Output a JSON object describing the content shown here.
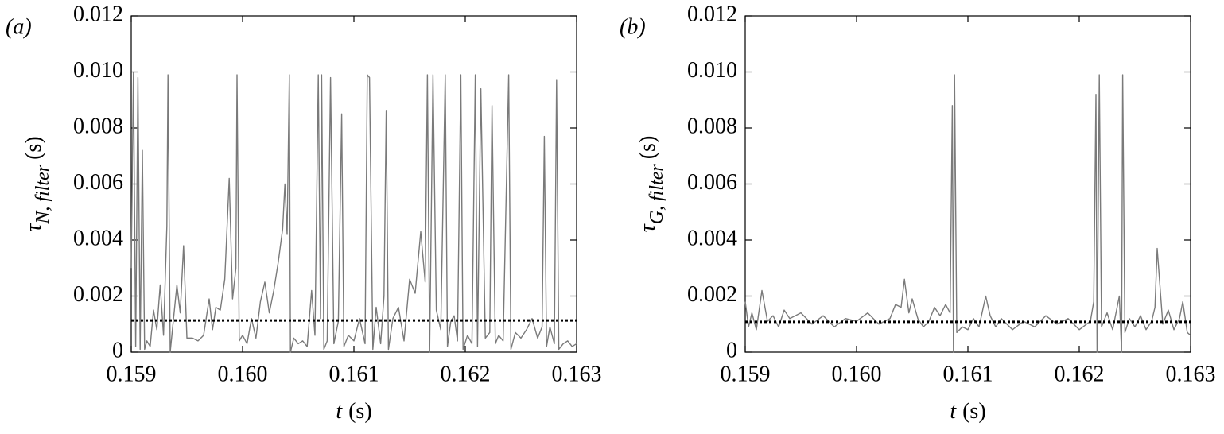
{
  "chart_data": [
    {
      "type": "line",
      "panel_label": "(a)",
      "xlabel": {
        "symbol": "t",
        "unit": "(s)"
      },
      "ylabel": {
        "symbol": "τ",
        "subscript": "N, filter",
        "unit": "(s)"
      },
      "xlim": [
        0.159,
        0.163
      ],
      "ylim": [
        0,
        0.012
      ],
      "xticks": [
        0.159,
        {
          "value": 0.16,
          "label": "0.160"
        },
        0.161,
        0.162,
        0.163
      ],
      "yticks": [
        0,
        {
          "value": 0.002,
          "label": "0.002"
        },
        {
          "value": 0.004,
          "label": "0.004"
        },
        {
          "value": 0.006,
          "label": "0.006"
        },
        {
          "value": 0.008,
          "label": "0.008"
        },
        {
          "value": 0.01,
          "label": "0.010"
        },
        {
          "value": 0.012,
          "label": "0.012"
        }
      ],
      "threshold": 0.00113,
      "threshold_color": "#000000",
      "x": [
        0.159,
        0.15902,
        0.15904,
        0.15906,
        0.15908,
        0.1591,
        0.15912,
        0.15914,
        0.15917,
        0.1592,
        0.15923,
        0.15926,
        0.15929,
        0.15932,
        0.15933,
        0.15935,
        0.15938,
        0.15941,
        0.15944,
        0.15947,
        0.1595,
        0.15955,
        0.1596,
        0.15965,
        0.1597,
        0.15973,
        0.15976,
        0.1598,
        0.15984,
        0.15988,
        0.15991,
        0.15994,
        0.15995,
        0.15997,
        0.16,
        0.16004,
        0.16008,
        0.16012,
        0.16016,
        0.1602,
        0.16024,
        0.16028,
        0.16032,
        0.16036,
        0.16038,
        0.1604,
        0.16042,
        0.16043,
        0.16046,
        0.1605,
        0.16054,
        0.16058,
        0.16062,
        0.16065,
        0.16068,
        0.1607,
        0.16071,
        0.16073,
        0.16076,
        0.16079,
        0.16082,
        0.16086,
        0.16089,
        0.16091,
        0.16095,
        0.161,
        0.16105,
        0.1611,
        0.16112,
        0.16114,
        0.16117,
        0.1612,
        0.16124,
        0.16127,
        0.16129,
        0.16131,
        0.16135,
        0.1614,
        0.16145,
        0.1615,
        0.16155,
        0.1616,
        0.16164,
        0.16166,
        0.16168,
        0.16171,
        0.16174,
        0.16178,
        0.16182,
        0.16184,
        0.16187,
        0.1619,
        0.16193,
        0.16196,
        0.16198,
        0.16202,
        0.16206,
        0.16209,
        0.16211,
        0.16214,
        0.16218,
        0.16222,
        0.16224,
        0.16227,
        0.1623,
        0.16234,
        0.16239,
        0.16241,
        0.16245,
        0.1625,
        0.16255,
        0.1626,
        0.16265,
        0.16269,
        0.16271,
        0.16273,
        0.16276,
        0.1628,
        0.16282,
        0.16284,
        0.16288,
        0.16292,
        0.16296,
        0.163
      ],
      "series": [
        {
          "color": "#7a7a7a",
          "values": [
            0.003,
            0.01,
            0.0002,
            0.0098,
            0.0001,
            0.0072,
            0.0001,
            0.0004,
            0.0002,
            0.0015,
            0.0008,
            0.0024,
            0.0006,
            0.0045,
            0.0099,
            0,
            0.0012,
            0.0024,
            0.0014,
            0.0038,
            0.0005,
            0.0005,
            0.0004,
            0.0006,
            0.0019,
            0.0008,
            0.0016,
            0.0015,
            0.0026,
            0.0062,
            0.0019,
            0.003,
            0.0099,
            0.0004,
            0.0006,
            0.0003,
            0.0012,
            0.0005,
            0.0018,
            0.0025,
            0.0014,
            0.0022,
            0.0032,
            0.0044,
            0.006,
            0.0042,
            0.0099,
            0,
            0.0005,
            0.0003,
            0.0004,
            0.0002,
            0.0022,
            0.0006,
            0.0099,
            0.0012,
            0.0099,
            0.0001,
            0.0004,
            0.0098,
            0.0003,
            0.0011,
            0.0085,
            0.0002,
            0.0006,
            0.0004,
            0.0012,
            0.0003,
            0.0099,
            0.0098,
            0.0001,
            0.0016,
            0.0003,
            0.002,
            0.0086,
            0.0001,
            0.0012,
            0.0016,
            0.0004,
            0.0026,
            0.0021,
            0.0043,
            0.0025,
            0.0099,
            0,
            0.0099,
            0.0015,
            0.0008,
            0.0099,
            0.0002,
            0.0011,
            0.0013,
            0.0004,
            0.0099,
            0.0001,
            0.0006,
            0.0003,
            0.0099,
            0.0002,
            0.0094,
            0.0005,
            0.0007,
            0.0088,
            0.0003,
            0.0006,
            0.0004,
            0.0099,
            0.0001,
            0.0007,
            0.0005,
            0.0008,
            0.0012,
            0.0005,
            0.0009,
            0.0077,
            0.0002,
            0.0009,
            0.0003,
            0.0097,
            0.0001,
            0.0003,
            0.0004,
            0.0002,
            0.0003
          ]
        }
      ]
    },
    {
      "type": "line",
      "panel_label": "(b)",
      "xlabel": {
        "symbol": "t",
        "unit": "(s)"
      },
      "ylabel": {
        "symbol": "τ",
        "subscript": "G, filter",
        "unit": "(s)"
      },
      "xlim": [
        0.159,
        0.163
      ],
      "ylim": [
        0,
        0.012
      ],
      "xticks": [
        0.159,
        {
          "value": 0.16,
          "label": "0.160"
        },
        0.161,
        0.162,
        0.163
      ],
      "yticks": [
        0,
        {
          "value": 0.002,
          "label": "0.002"
        },
        {
          "value": 0.004,
          "label": "0.004"
        },
        {
          "value": 0.006,
          "label": "0.006"
        },
        {
          "value": 0.008,
          "label": "0.008"
        },
        {
          "value": 0.01,
          "label": "0.010"
        },
        {
          "value": 0.012,
          "label": "0.012"
        }
      ],
      "threshold": 0.00108,
      "threshold_color": "#000000",
      "x": [
        0.159,
        0.15903,
        0.15906,
        0.1591,
        0.15915,
        0.1592,
        0.15925,
        0.1593,
        0.15935,
        0.1594,
        0.1595,
        0.1596,
        0.1597,
        0.1598,
        0.1599,
        0.16,
        0.1601,
        0.1602,
        0.1603,
        0.16035,
        0.1604,
        0.16043,
        0.16047,
        0.1605,
        0.16055,
        0.1606,
        0.16065,
        0.1607,
        0.16075,
        0.1608,
        0.16084,
        0.16086,
        0.16087,
        0.16088,
        0.1609,
        0.16095,
        0.161,
        0.16105,
        0.1611,
        0.16116,
        0.1612,
        0.16125,
        0.1613,
        0.1614,
        0.1615,
        0.1616,
        0.1617,
        0.1618,
        0.1619,
        0.162,
        0.1621,
        0.16213,
        0.16215,
        0.16216,
        0.16218,
        0.1622,
        0.16225,
        0.1623,
        0.16236,
        0.16238,
        0.16239,
        0.16241,
        0.16245,
        0.1625,
        0.16255,
        0.1626,
        0.16265,
        0.16268,
        0.1627,
        0.16275,
        0.1628,
        0.16285,
        0.1629,
        0.16293,
        0.16297,
        0.163
      ],
      "series": [
        {
          "color": "#7a7a7a",
          "values": [
            0.0018,
            0.0009,
            0.0014,
            0.0008,
            0.0022,
            0.0011,
            0.0013,
            0.0009,
            0.0015,
            0.0012,
            0.0014,
            0.001,
            0.0013,
            0.0009,
            0.0012,
            0.0011,
            0.0014,
            0.001,
            0.0012,
            0.0017,
            0.0016,
            0.0026,
            0.0014,
            0.0019,
            0.0012,
            0.0009,
            0.0011,
            0.0016,
            0.0013,
            0.0017,
            0.0014,
            0.0088,
            0,
            0.0099,
            0.0007,
            0.0009,
            0.0008,
            0.0012,
            0.0009,
            0.002,
            0.0013,
            0.0009,
            0.0012,
            0.0008,
            0.0011,
            0.0009,
            0.0013,
            0.001,
            0.0012,
            0.0008,
            0.0011,
            0.0018,
            0.0092,
            0,
            0.0099,
            0.0009,
            0.0014,
            0.0008,
            0.002,
            0,
            0.0099,
            0.0007,
            0.0012,
            0.0009,
            0.0013,
            0.0008,
            0.0011,
            0.0016,
            0.0037,
            0.001,
            0.0015,
            0.0008,
            0.0012,
            0.0018,
            0.0007,
            0.0006
          ]
        }
      ]
    }
  ]
}
